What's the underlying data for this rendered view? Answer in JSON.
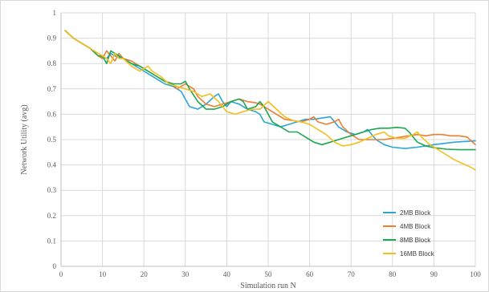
{
  "chart_data": {
    "type": "line",
    "title": "",
    "xlabel": "Simulation run N",
    "ylabel": "Network Utility (avg)",
    "xlim": [
      0,
      100
    ],
    "ylim": [
      0,
      1
    ],
    "xticks": [
      0,
      10,
      20,
      30,
      40,
      50,
      60,
      70,
      80,
      90,
      100
    ],
    "yticks": [
      0,
      0.1,
      0.2,
      0.3,
      0.4,
      0.5,
      0.6,
      0.7,
      0.8,
      0.9,
      1
    ],
    "xtick_labels": [
      "0",
      "10",
      "20",
      "30",
      "40",
      "50",
      "60",
      "70",
      "80",
      "90",
      "100"
    ],
    "ytick_labels": [
      "0",
      "0.1",
      "0.2",
      "0.3",
      "0.4",
      "0.5",
      "0.6",
      "0.7",
      "0.8",
      "0.9",
      "1"
    ],
    "grid": "vertical and horizontal major gridlines",
    "legend_position": "right, lower",
    "series": [
      {
        "name": "2MB Block",
        "color": "#2BA6D5",
        "points": [
          [
            1,
            0.93
          ],
          [
            3,
            0.9
          ],
          [
            5,
            0.88
          ],
          [
            7,
            0.86
          ],
          [
            9,
            0.83
          ],
          [
            11,
            0.82
          ],
          [
            12,
            0.84
          ],
          [
            13,
            0.83
          ],
          [
            15,
            0.82
          ],
          [
            17,
            0.8
          ],
          [
            19,
            0.78
          ],
          [
            21,
            0.76
          ],
          [
            23,
            0.74
          ],
          [
            25,
            0.72
          ],
          [
            27,
            0.71
          ],
          [
            29,
            0.69
          ],
          [
            31,
            0.63
          ],
          [
            33,
            0.62
          ],
          [
            35,
            0.64
          ],
          [
            37,
            0.67
          ],
          [
            38,
            0.68
          ],
          [
            39,
            0.65
          ],
          [
            40,
            0.63
          ],
          [
            41,
            0.65
          ],
          [
            43,
            0.64
          ],
          [
            45,
            0.62
          ],
          [
            47,
            0.61
          ],
          [
            48,
            0.6
          ],
          [
            49,
            0.57
          ],
          [
            51,
            0.56
          ],
          [
            53,
            0.55
          ],
          [
            55,
            0.56
          ],
          [
            57,
            0.57
          ],
          [
            59,
            0.58
          ],
          [
            61,
            0.58
          ],
          [
            63,
            0.585
          ],
          [
            65,
            0.59
          ],
          [
            66,
            0.57
          ],
          [
            67,
            0.55
          ],
          [
            69,
            0.53
          ],
          [
            71,
            0.52
          ],
          [
            73,
            0.53
          ],
          [
            74,
            0.54
          ],
          [
            75,
            0.52
          ],
          [
            76,
            0.5
          ],
          [
            78,
            0.48
          ],
          [
            80,
            0.47
          ],
          [
            83,
            0.465
          ],
          [
            86,
            0.47
          ],
          [
            90,
            0.48
          ],
          [
            95,
            0.49
          ],
          [
            100,
            0.495
          ]
        ]
      },
      {
        "name": "4MB Block",
        "color": "#ED7D31",
        "points": [
          [
            1,
            0.93
          ],
          [
            3,
            0.9
          ],
          [
            5,
            0.88
          ],
          [
            7,
            0.86
          ],
          [
            9,
            0.83
          ],
          [
            10,
            0.82
          ],
          [
            11,
            0.85
          ],
          [
            12,
            0.83
          ],
          [
            13,
            0.81
          ],
          [
            14,
            0.84
          ],
          [
            15,
            0.82
          ],
          [
            17,
            0.81
          ],
          [
            19,
            0.79
          ],
          [
            21,
            0.77
          ],
          [
            23,
            0.75
          ],
          [
            25,
            0.73
          ],
          [
            27,
            0.72
          ],
          [
            28,
            0.7
          ],
          [
            30,
            0.72
          ],
          [
            32,
            0.7
          ],
          [
            33,
            0.67
          ],
          [
            35,
            0.64
          ],
          [
            37,
            0.63
          ],
          [
            39,
            0.64
          ],
          [
            41,
            0.65
          ],
          [
            43,
            0.66
          ],
          [
            45,
            0.65
          ],
          [
            47,
            0.645
          ],
          [
            48,
            0.64
          ],
          [
            50,
            0.62
          ],
          [
            52,
            0.6
          ],
          [
            54,
            0.58
          ],
          [
            56,
            0.575
          ],
          [
            58,
            0.57
          ],
          [
            60,
            0.58
          ],
          [
            61,
            0.59
          ],
          [
            62,
            0.57
          ],
          [
            64,
            0.56
          ],
          [
            66,
            0.57
          ],
          [
            67,
            0.58
          ],
          [
            68,
            0.55
          ],
          [
            70,
            0.52
          ],
          [
            72,
            0.5
          ],
          [
            74,
            0.5
          ],
          [
            76,
            0.5
          ],
          [
            78,
            0.5
          ],
          [
            80,
            0.505
          ],
          [
            82,
            0.51
          ],
          [
            84,
            0.515
          ],
          [
            86,
            0.52
          ],
          [
            88,
            0.515
          ],
          [
            90,
            0.52
          ],
          [
            92,
            0.52
          ],
          [
            94,
            0.515
          ],
          [
            96,
            0.515
          ],
          [
            98,
            0.51
          ],
          [
            100,
            0.48
          ]
        ]
      },
      {
        "name": "8MB Block",
        "color": "#1DA750",
        "points": [
          [
            1,
            0.93
          ],
          [
            3,
            0.9
          ],
          [
            5,
            0.88
          ],
          [
            7,
            0.86
          ],
          [
            9,
            0.83
          ],
          [
            10,
            0.83
          ],
          [
            11,
            0.8
          ],
          [
            12,
            0.85
          ],
          [
            13,
            0.84
          ],
          [
            15,
            0.82
          ],
          [
            17,
            0.8
          ],
          [
            19,
            0.79
          ],
          [
            21,
            0.77
          ],
          [
            23,
            0.75
          ],
          [
            25,
            0.73
          ],
          [
            27,
            0.72
          ],
          [
            29,
            0.72
          ],
          [
            30,
            0.73
          ],
          [
            31,
            0.7
          ],
          [
            33,
            0.65
          ],
          [
            35,
            0.62
          ],
          [
            37,
            0.62
          ],
          [
            39,
            0.63
          ],
          [
            41,
            0.65
          ],
          [
            43,
            0.66
          ],
          [
            44,
            0.65
          ],
          [
            45,
            0.62
          ],
          [
            47,
            0.63
          ],
          [
            48,
            0.65
          ],
          [
            49,
            0.63
          ],
          [
            51,
            0.57
          ],
          [
            53,
            0.55
          ],
          [
            55,
            0.53
          ],
          [
            57,
            0.53
          ],
          [
            59,
            0.51
          ],
          [
            61,
            0.49
          ],
          [
            63,
            0.48
          ],
          [
            65,
            0.49
          ],
          [
            67,
            0.5
          ],
          [
            69,
            0.51
          ],
          [
            71,
            0.52
          ],
          [
            73,
            0.53
          ],
          [
            75,
            0.54
          ],
          [
            77,
            0.545
          ],
          [
            79,
            0.545
          ],
          [
            81,
            0.548
          ],
          [
            83,
            0.545
          ],
          [
            84,
            0.53
          ],
          [
            86,
            0.49
          ],
          [
            88,
            0.475
          ],
          [
            90,
            0.468
          ],
          [
            93,
            0.462
          ],
          [
            96,
            0.46
          ],
          [
            100,
            0.46
          ]
        ]
      },
      {
        "name": "16MB Block",
        "color": "#F5BE1F",
        "points": [
          [
            1,
            0.93
          ],
          [
            3,
            0.9
          ],
          [
            5,
            0.88
          ],
          [
            7,
            0.86
          ],
          [
            9,
            0.84
          ],
          [
            10,
            0.83
          ],
          [
            11,
            0.82
          ],
          [
            12,
            0.8
          ],
          [
            13,
            0.84
          ],
          [
            14,
            0.82
          ],
          [
            15,
            0.82
          ],
          [
            17,
            0.79
          ],
          [
            19,
            0.77
          ],
          [
            21,
            0.79
          ],
          [
            22,
            0.77
          ],
          [
            24,
            0.75
          ],
          [
            26,
            0.72
          ],
          [
            28,
            0.71
          ],
          [
            30,
            0.7
          ],
          [
            32,
            0.69
          ],
          [
            34,
            0.67
          ],
          [
            36,
            0.68
          ],
          [
            38,
            0.65
          ],
          [
            40,
            0.61
          ],
          [
            42,
            0.6
          ],
          [
            44,
            0.61
          ],
          [
            46,
            0.62
          ],
          [
            48,
            0.62
          ],
          [
            50,
            0.65
          ],
          [
            52,
            0.62
          ],
          [
            54,
            0.59
          ],
          [
            56,
            0.575
          ],
          [
            58,
            0.57
          ],
          [
            60,
            0.56
          ],
          [
            62,
            0.54
          ],
          [
            64,
            0.52
          ],
          [
            66,
            0.49
          ],
          [
            68,
            0.475
          ],
          [
            70,
            0.48
          ],
          [
            72,
            0.49
          ],
          [
            74,
            0.505
          ],
          [
            76,
            0.52
          ],
          [
            78,
            0.53
          ],
          [
            79,
            0.515
          ],
          [
            81,
            0.505
          ],
          [
            83,
            0.505
          ],
          [
            85,
            0.52
          ],
          [
            86,
            0.53
          ],
          [
            87,
            0.51
          ],
          [
            89,
            0.48
          ],
          [
            91,
            0.46
          ],
          [
            93,
            0.44
          ],
          [
            95,
            0.42
          ],
          [
            97,
            0.405
          ],
          [
            99,
            0.39
          ],
          [
            100,
            0.38
          ]
        ]
      }
    ]
  }
}
